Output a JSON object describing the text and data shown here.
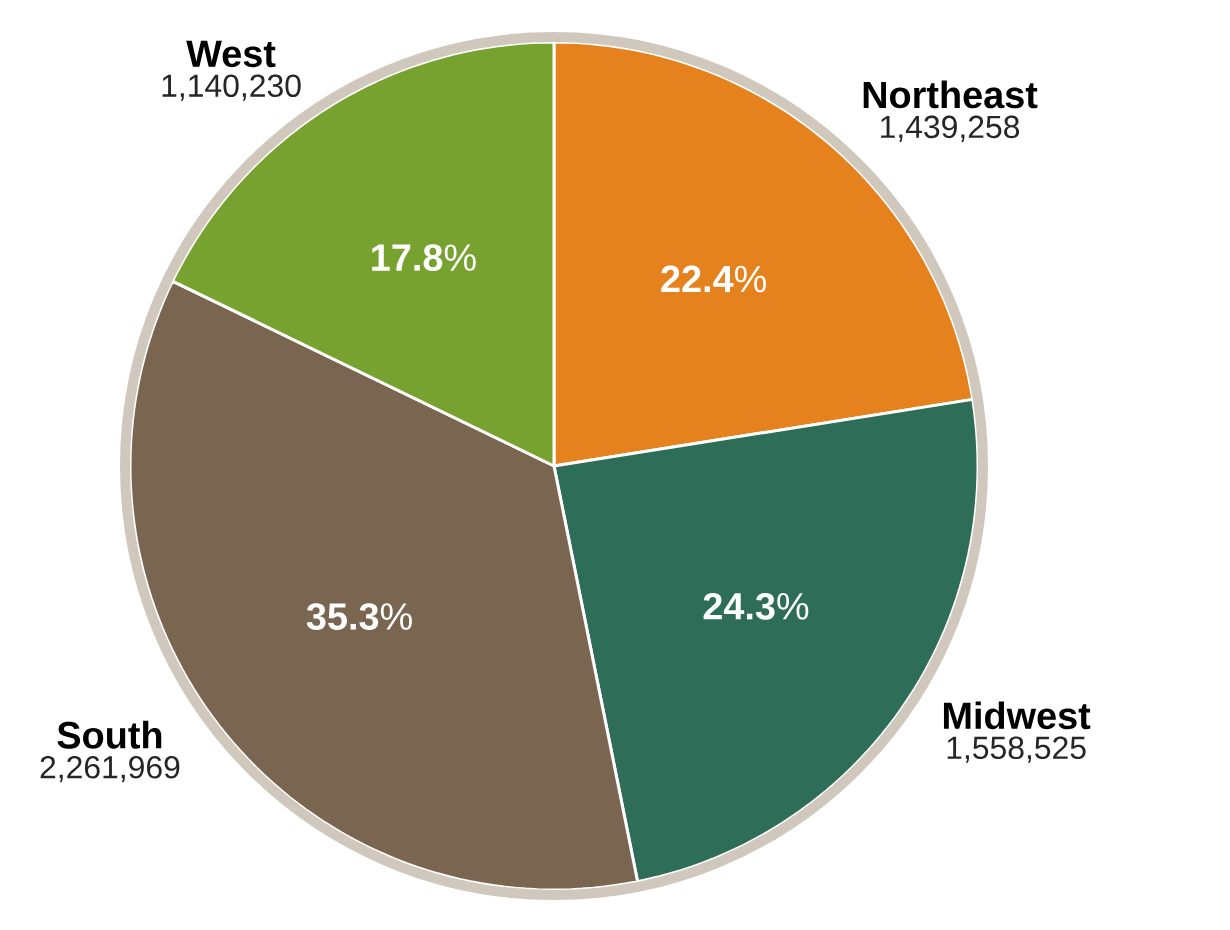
{
  "chart_data": {
    "type": "pie",
    "categories": [
      "Northeast",
      "Midwest",
      "South",
      "West"
    ],
    "values": [
      1439258,
      1558525,
      2261969,
      1140230
    ],
    "colors": [
      "#e6821e",
      "#2e6e58",
      "#7a6650",
      "#78a22f"
    ],
    "value_labels": [
      "1,439,258",
      "1,558,525",
      "2,261,969",
      "1,140,230"
    ],
    "annotations": [
      "**22.4**%",
      "**24.3**%",
      "**35.3**%",
      "**17.8**%"
    ],
    "data_labels": true
  }
}
